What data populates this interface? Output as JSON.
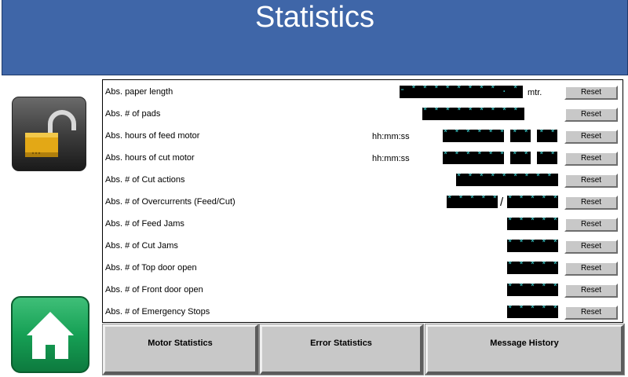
{
  "header": {
    "title": "Statistics"
  },
  "icons": {
    "lock": "unlocked-padlock-icon",
    "home": "home-icon"
  },
  "colors": {
    "header_bg": "#3f66a8",
    "field_bg": "#000000",
    "field_text": "#3fd2d2",
    "home_green": "#16a055",
    "button_gray": "#c8c8c8"
  },
  "rows": [
    {
      "label": "Abs. paper length",
      "unit": "",
      "value1": "- * * * * * * * * . * *",
      "separator": "",
      "value2": "",
      "suffix": "mtr.",
      "reset": "Reset"
    },
    {
      "label": "Abs. # of pads",
      "unit": "",
      "value1": "* * * * * * * * * *",
      "separator": "",
      "value2": "",
      "suffix": "",
      "reset": "Reset"
    },
    {
      "label": "Abs. hours of feed motor",
      "unit": "hh:mm:ss",
      "value1": "* * * * * *",
      "separator": "",
      "value2": "* *",
      "value3": "* *",
      "suffix": "",
      "reset": "Reset"
    },
    {
      "label": "Abs. hours of cut motor",
      "unit": "hh:mm:ss",
      "value1": "* * * * * *",
      "separator": "",
      "value2": "* *",
      "value3": "* *",
      "suffix": "",
      "reset": "Reset"
    },
    {
      "label": "Abs. # of Cut actions",
      "unit": "",
      "value1": "* * * * * * * * * *",
      "separator": "",
      "value2": "",
      "suffix": "",
      "reset": "Reset"
    },
    {
      "label": "Abs. # of Overcurrents (Feed/Cut)",
      "unit": "",
      "value1": "* * * * *",
      "separator": "/",
      "value2": "* * * * *",
      "suffix": "",
      "reset": "Reset"
    },
    {
      "label": "Abs. # of Feed Jams",
      "unit": "",
      "value1": "* * * * *",
      "separator": "",
      "value2": "",
      "suffix": "",
      "reset": "Reset"
    },
    {
      "label": "Abs. # of Cut Jams",
      "unit": "",
      "value1": "* * * * *",
      "separator": "",
      "value2": "",
      "suffix": "",
      "reset": "Reset"
    },
    {
      "label": "Abs. # of Top door open",
      "unit": "",
      "value1": "* * * * *",
      "separator": "",
      "value2": "",
      "suffix": "",
      "reset": "Reset"
    },
    {
      "label": "Abs. # of Front door open",
      "unit": "",
      "value1": "* * * * *",
      "separator": "",
      "value2": "",
      "suffix": "",
      "reset": "Reset"
    },
    {
      "label": "Abs. # of Emergency Stops",
      "unit": "",
      "value1": "* * * * *",
      "separator": "",
      "value2": "",
      "suffix": "",
      "reset": "Reset"
    }
  ],
  "nav": {
    "motor": "Motor Statistics",
    "error": "Error Statistics",
    "message": "Message History"
  }
}
